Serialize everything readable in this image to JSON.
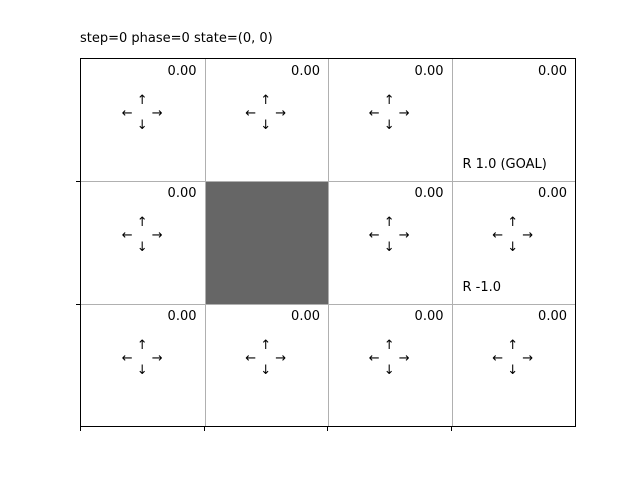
{
  "title": "step=0 phase=0 state=(0, 0)",
  "arrow_glyphs": {
    "up": "↑",
    "down": "↓",
    "left": "←",
    "right": "→"
  },
  "colors": {
    "grid_line": "#b0b0b0",
    "wall": "#666666",
    "background": "#ffffff",
    "border": "#000000"
  },
  "grid": {
    "rows": 3,
    "cols": 4,
    "cells": [
      [
        {
          "value": "0.00",
          "arrows": true
        },
        {
          "value": "0.00",
          "arrows": true
        },
        {
          "value": "0.00",
          "arrows": true
        },
        {
          "value": "0.00",
          "arrows": false,
          "reward": "R 1.0 (GOAL)"
        }
      ],
      [
        {
          "value": "0.00",
          "arrows": true
        },
        {
          "wall": true
        },
        {
          "value": "0.00",
          "arrows": true
        },
        {
          "value": "0.00",
          "arrows": true,
          "reward": "R -1.0"
        }
      ],
      [
        {
          "value": "0.00",
          "arrows": true
        },
        {
          "value": "0.00",
          "arrows": true
        },
        {
          "value": "0.00",
          "arrows": true
        },
        {
          "value": "0.00",
          "arrows": true
        }
      ]
    ]
  }
}
